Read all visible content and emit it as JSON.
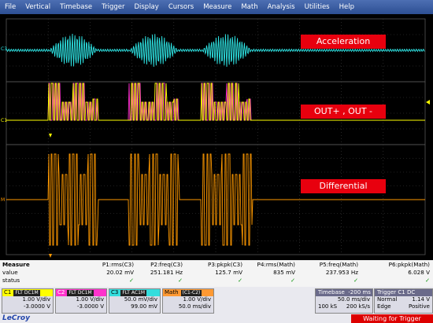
{
  "menu": [
    "File",
    "Vertical",
    "Timebase",
    "Trigger",
    "Display",
    "Cursors",
    "Measure",
    "Math",
    "Analysis",
    "Utilities",
    "Help"
  ],
  "labels": {
    "acceleration": "Acceleration",
    "out": "OUT+ , OUT -",
    "differential": "Differential"
  },
  "side_markers": {
    "c3": "C3",
    "c1": "C1",
    "m": "M"
  },
  "measure": {
    "title": "Measure",
    "row_value": "value",
    "row_status": "status",
    "params": [
      {
        "name": "P1:rms(C3)",
        "value": "20.02 mV",
        "status": "✓"
      },
      {
        "name": "P2:freq(C3)",
        "value": "251.181 Hz",
        "status": "✓"
      },
      {
        "name": "P3:pkpk(C3)",
        "value": "125.7 mV",
        "status": "✓"
      },
      {
        "name": "P4:rms(Math)",
        "value": "835 mV",
        "status": "✓"
      },
      {
        "name": "P5:freq(Math)",
        "value": "237.953 Hz",
        "status": "✓"
      },
      {
        "name": "P6:pkpk(Math)",
        "value": "6.028 V",
        "status": "✓"
      }
    ]
  },
  "channels": [
    {
      "name": "C1",
      "tags": "FLT DC1M",
      "vdiv": "1.00 V/div",
      "offset": "-3.0000 V",
      "color": "#ffff00",
      "text": "#000"
    },
    {
      "name": "C2",
      "tags": "FLT DC1M",
      "vdiv": "1.00 V/div",
      "offset": "-3.0000 V",
      "color": "#ff33cc",
      "text": "#fff"
    },
    {
      "name": "C3",
      "tags": "FLT AC1M",
      "vdiv": "50.0 mV/div",
      "offset": "99.00 mV",
      "color": "#33dddd",
      "text": "#000"
    },
    {
      "name": "Math",
      "tags": "(C1-C2)",
      "vdiv": "1.00 V/div",
      "offset": "50.0 ms/div",
      "color": "#ff9933",
      "text": "#000"
    }
  ],
  "timebase": {
    "title": "Timebase",
    "delay": "-200 ms",
    "tdiv": "50.0 ms/div",
    "points": "100 kS",
    "rate": "200 kS/s"
  },
  "trigger": {
    "title": "Trigger",
    "tag": "C1 DC",
    "mode": "Normal",
    "level": "1.14 V",
    "type": "Edge",
    "slope": "Positive"
  },
  "status_text": "Waiting for Trigger",
  "brand": "LeCroy",
  "colors": {
    "c3": "#2ee6e6",
    "c1": "#ffff00",
    "c2": "#ff33cc",
    "math": "#ff9900",
    "grid": "#404040",
    "label": "#e8000e"
  }
}
